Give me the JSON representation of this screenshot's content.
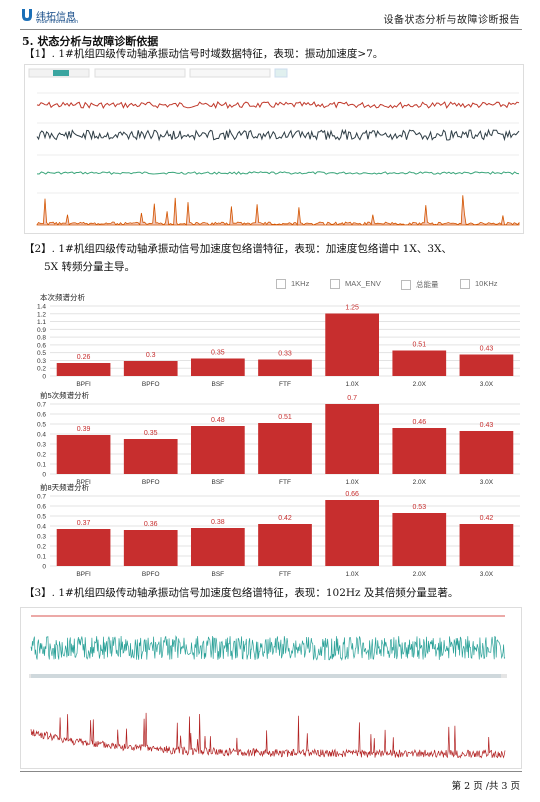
{
  "header": {
    "logo_text": "纬拓信息",
    "logo_sub": "Vtue Information",
    "doc_title": "设备状态分析与故障诊断报告"
  },
  "section": {
    "title": "5. 状态分析与故障诊断依据"
  },
  "item1": {
    "text": "【1】. 1#机组四级传动轴承振动信号时域数据特征，表现：振动加速度>7。"
  },
  "item2": {
    "line1": "【2】. 1#机组四级传动轴承振动信号加速度包络谱特征，表现：加速度包络谱中 1X、3X、",
    "line2": "5X 转频分量主导。"
  },
  "item3": {
    "text": "【3】. 1#机组四级传动轴承振动信号加速度包络谱特征，表现：102Hz 及其倍频分量显著。"
  },
  "legend": [
    "1KHz",
    "MAX_ENV",
    "总能量",
    "10KHz"
  ],
  "colors": {
    "bar": "#c72e2e",
    "teal": "#2aa198",
    "darkred": "#b22222"
  },
  "chart_data": [
    {
      "type": "bar",
      "title": "本次频谱分析",
      "categories": [
        "BPFI",
        "BPFO",
        "BSF",
        "FTF",
        "1.0X",
        "2.0X",
        "3.0X"
      ],
      "values": [
        0.26,
        0.3,
        0.35,
        0.33,
        1.25,
        0.51,
        0.43
      ],
      "value_labels": [
        "0.26",
        "0.3",
        "0.35",
        "0.33",
        "1.25",
        "0.51",
        "0.43"
      ],
      "ylim": [
        0,
        1.4
      ],
      "yticks": [
        "0",
        "0.2",
        "0.3",
        "0.5",
        "0.6",
        "0.8",
        "0.9",
        "1.1",
        "1.2",
        "1.4"
      ]
    },
    {
      "type": "bar",
      "title": "前5次频谱分析",
      "categories": [
        "BPFI",
        "BPFO",
        "BSF",
        "FTF",
        "1.0X",
        "2.0X",
        "3.0X"
      ],
      "values": [
        0.39,
        0.35,
        0.48,
        0.51,
        0.7,
        0.46,
        0.43
      ],
      "value_labels": [
        "0.39",
        "0.35",
        "0.48",
        "0.51",
        "0.7",
        "0.46",
        "0.43"
      ],
      "ylim": [
        0,
        0.7
      ],
      "yticks": [
        "0",
        "0.1",
        "0.2",
        "0.3",
        "0.4",
        "0.5",
        "0.6",
        "0.7"
      ]
    },
    {
      "type": "bar",
      "title": "前8天频谱分析",
      "categories": [
        "BPFI",
        "BPFO",
        "BSF",
        "FTF",
        "1.0X",
        "2.0X",
        "3.0X"
      ],
      "values": [
        0.37,
        0.36,
        0.38,
        0.42,
        0.66,
        0.53,
        0.42
      ],
      "value_labels": [
        "0.37",
        "0.36",
        "0.38",
        "0.42",
        "0.66",
        "0.53",
        "0.42"
      ],
      "ylim": [
        0,
        0.7
      ],
      "yticks": [
        "0",
        "0.1",
        "0.2",
        "0.3",
        "0.4",
        "0.5",
        "0.6",
        "0.7"
      ]
    }
  ],
  "footer": {
    "page": "第 2 页 /共 3 页"
  }
}
